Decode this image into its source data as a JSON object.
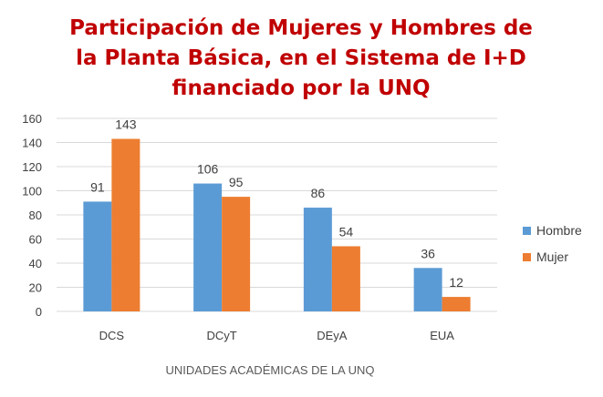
{
  "chart_data": {
    "type": "bar",
    "title_lines": [
      "Participación de Mujeres y Hombres de",
      "la Planta Básica, en el Sistema de I+D",
      "financiado por la UNQ"
    ],
    "categories": [
      "DCS",
      "DCyT",
      "DEyA",
      "EUA"
    ],
    "series": [
      {
        "name": "Hombre",
        "values": [
          91,
          106,
          86,
          36
        ],
        "color": "#5b9bd5"
      },
      {
        "name": "Mujer",
        "values": [
          143,
          95,
          54,
          12
        ],
        "color": "#ed7d31"
      }
    ],
    "xlabel": "UNIDADES ACADÉMICAS DE LA UNQ",
    "ylabel": "",
    "ylim": [
      0,
      160
    ],
    "yticks": [
      0,
      20,
      40,
      60,
      80,
      100,
      120,
      140,
      160
    ],
    "grid": true,
    "legend_position": "right",
    "title_color": "#c00000"
  }
}
